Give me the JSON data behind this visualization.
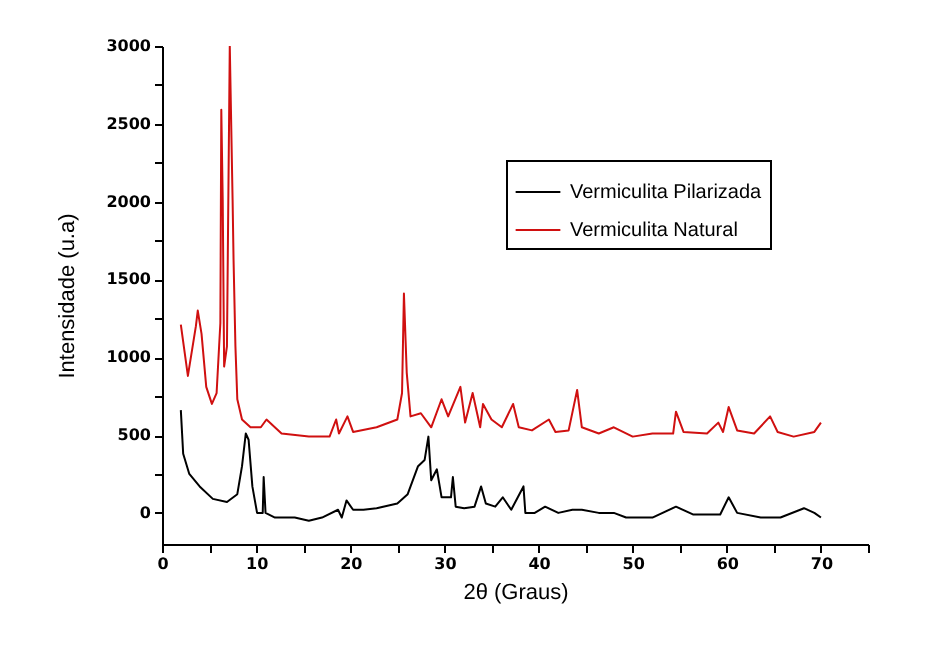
{
  "chart_data": {
    "type": "line",
    "xlabel": "2θ (Graus)",
    "ylabel": "Intensidade (u.a)",
    "xlim": [
      0,
      75
    ],
    "xticks": [
      0,
      {
        "value": 5,
        "label": null
      },
      10,
      {
        "value": 15,
        "label": null
      },
      20,
      {
        "value": 25,
        "label": null
      },
      30,
      {
        "value": 35,
        "label": null
      },
      40,
      {
        "value": 45,
        "label": null
      },
      50,
      {
        "value": 55,
        "label": null
      },
      60,
      {
        "value": 65,
        "label": null
      },
      70,
      {
        "value": 75,
        "label": null
      }
    ],
    "ylim": [
      -200,
      3000
    ],
    "yticks": [
      0,
      {
        "value": 250,
        "label": null
      },
      500,
      {
        "value": 750,
        "label": null
      },
      1000,
      {
        "value": 1250,
        "label": null
      },
      1500,
      {
        "value": 1750,
        "label": null
      },
      2000,
      {
        "value": 2250,
        "label": null
      },
      2500,
      {
        "value": 2750,
        "label": null
      },
      3000
    ],
    "legend": "top right",
    "grid": false,
    "marker": "none",
    "line_style": "solid",
    "series": [
      {
        "name": "Vermiculita Pilarizada",
        "color": "#000000",
        "x": [
          2.0,
          2.25,
          2.9,
          4.0,
          5.4,
          6.9,
          8.0,
          8.5,
          8.9,
          9.2,
          9.6,
          10.1,
          10.7,
          10.8,
          11.0,
          12.0,
          14.1,
          15.6,
          17.0,
          18.7,
          19.1,
          19.6,
          20.3,
          21.4,
          22.8,
          25.0,
          26.1,
          27.2,
          27.9,
          28.3,
          28.6,
          29.2,
          29.7,
          30.7,
          30.9,
          31.2,
          32.1,
          33.2,
          33.9,
          34.4,
          35.4,
          36.2,
          37.1,
          38.4,
          38.6,
          39.6,
          40.7,
          42.1,
          43.6,
          44.6,
          46.4,
          48.0,
          49.3,
          52.1,
          54.6,
          56.4,
          59.3,
          60.2,
          61.1,
          63.6,
          65.7,
          68.2,
          69.3,
          70.0
        ],
        "values": [
          660,
          380,
          250,
          170,
          90,
          70,
          120,
          300,
          510,
          470,
          170,
          0,
          0,
          230,
          0,
          -30,
          -30,
          -50,
          -30,
          20,
          -30,
          80,
          20,
          20,
          30,
          60,
          120,
          300,
          340,
          490,
          210,
          280,
          100,
          100,
          230,
          40,
          30,
          40,
          170,
          60,
          40,
          100,
          20,
          170,
          0,
          0,
          40,
          0,
          20,
          20,
          0,
          0,
          -30,
          -30,
          40,
          -10,
          -10,
          100,
          0,
          -30,
          -30,
          30,
          0,
          -30
        ]
      },
      {
        "name": "Vermiculita Natural",
        "color": "#d01010",
        "x": [
          2.0,
          2.75,
          3.6,
          3.8,
          4.2,
          4.7,
          5.3,
          5.8,
          6.2,
          6.3,
          6.45,
          6.6,
          6.9,
          7.2,
          7.5,
          7.6,
          7.8,
          8.0,
          8.5,
          9.4,
          10.5,
          11.1,
          12.7,
          15.6,
          17.8,
          18.5,
          18.8,
          19.7,
          20.3,
          22.8,
          25.0,
          25.5,
          25.7,
          26.0,
          26.4,
          27.5,
          28.6,
          29.7,
          30.4,
          31.7,
          32.2,
          33.0,
          33.8,
          34.1,
          35.0,
          36.1,
          37.3,
          37.9,
          39.3,
          41.1,
          41.8,
          43.2,
          44.1,
          44.6,
          46.4,
          48.0,
          50.0,
          52.1,
          54.3,
          54.6,
          55.4,
          57.9,
          59.1,
          59.6,
          60.2,
          61.1,
          62.9,
          64.6,
          65.4,
          67.1,
          69.3,
          70.0
        ],
        "values": [
          1210,
          880,
          1200,
          1300,
          1150,
          810,
          700,
          770,
          1220,
          2590,
          2010,
          940,
          1070,
          3000,
          2010,
          1630,
          1070,
          730,
          600,
          550,
          550,
          600,
          510,
          490,
          490,
          600,
          510,
          620,
          520,
          550,
          600,
          770,
          1410,
          900,
          620,
          640,
          550,
          730,
          620,
          810,
          580,
          770,
          550,
          700,
          600,
          550,
          700,
          550,
          530,
          600,
          520,
          530,
          790,
          550,
          510,
          550,
          490,
          510,
          510,
          650,
          520,
          510,
          580,
          520,
          680,
          530,
          510,
          620,
          520,
          490,
          520,
          580
        ]
      }
    ]
  }
}
